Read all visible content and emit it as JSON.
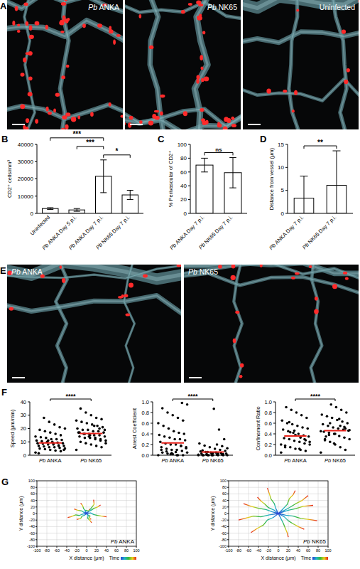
{
  "panel_labels": [
    "A",
    "B",
    "C",
    "D",
    "E",
    "F",
    "G"
  ],
  "images": {
    "A": [
      "Pb ANKA",
      "Pb NK65",
      "Uninfected"
    ],
    "E": [
      "Pb ANKA",
      "Pb NK65"
    ]
  },
  "chart_data": [
    {
      "type": "bar",
      "ylabel": "CD2⁺ cells/mm³",
      "categories": [
        "Uninfected",
        "Pb ANKA Day 5 p.i.",
        "Pb ANKA Day 7 p.i.",
        "Pb NK65 Day 7 p.i."
      ],
      "values": [
        2800,
        2000,
        21500,
        10700
      ],
      "errors": [
        500,
        800,
        9500,
        2700
      ],
      "color": "#ffffff",
      "ylim": [
        0,
        40000
      ],
      "yticks": [
        0,
        10000,
        20000,
        30000,
        40000
      ],
      "annotations": [
        {
          "from": 2,
          "to": 3,
          "text": "*"
        },
        {
          "from": 1,
          "to": 2,
          "text": "***"
        },
        {
          "from": 0,
          "to": 2,
          "text": "***"
        }
      ]
    },
    {
      "type": "bar",
      "ylabel": "% Perivascular of CD2⁺",
      "categories": [
        "Pb ANKA Day 7 p.i.",
        "Pb NK65 Day 7 p.i."
      ],
      "values": [
        70,
        59
      ],
      "errors": [
        10,
        22
      ],
      "color": "#ffffff",
      "ylim": [
        0,
        100
      ],
      "yticks": [
        0,
        20,
        40,
        60,
        80,
        100
      ],
      "annotations": [
        {
          "from": 0,
          "to": 1,
          "text": "ns"
        }
      ]
    },
    {
      "type": "bar",
      "ylabel": "Distance from vessel (μm)",
      "categories": [
        "Pb ANKA Day 7 p.i.",
        "Pb NK65 Day 7 p.i."
      ],
      "values": [
        3.3,
        6.1
      ],
      "errors": [
        4.8,
        7.5
      ],
      "color": "#ffffff",
      "ylim": [
        0,
        15
      ],
      "yticks": [
        0,
        5,
        10,
        15
      ],
      "annotations": [
        {
          "from": 0,
          "to": 1,
          "text": "**"
        }
      ]
    },
    {
      "type": "scatter",
      "ylabel": "Speed (μm/min)",
      "categories": [
        "Pb ANKA",
        "Pb NK65"
      ],
      "color": "#000000",
      "values": [
        [
          2,
          3,
          3.5,
          4,
          4.5,
          5,
          5,
          5.5,
          6,
          6,
          6.5,
          7,
          7,
          7.5,
          8,
          8,
          8.5,
          9,
          9,
          9.5,
          10,
          10,
          10.5,
          11,
          11.5,
          12,
          12,
          13,
          13.5,
          14,
          15,
          16,
          17,
          18,
          19,
          20,
          21,
          23,
          25,
          28,
          1.5,
          4,
          7,
          9,
          11
        ],
        [
          4,
          6,
          7,
          8,
          9,
          10,
          11,
          12,
          12,
          13,
          13,
          14,
          14,
          15,
          15,
          16,
          16,
          17,
          17,
          18,
          18,
          19,
          19,
          20,
          21,
          22,
          23,
          24,
          25,
          26,
          27,
          28,
          30,
          32,
          35,
          9,
          11,
          13,
          15,
          16,
          17,
          19,
          20,
          22,
          14
        ]
      ],
      "means": [
        9.2,
        16.3
      ],
      "ylim": [
        0,
        40
      ],
      "yticks": [
        0,
        10,
        20,
        30,
        40
      ],
      "annotations": [
        {
          "from": 0,
          "to": 1,
          "text": "****"
        }
      ]
    },
    {
      "type": "scatter",
      "ylabel": "Arrest Coefficient",
      "categories": [
        "Pb ANKA",
        "Pb NK65"
      ],
      "color": "#000000",
      "values": [
        [
          0,
          0,
          0,
          0.02,
          0.03,
          0.05,
          0.05,
          0.08,
          0.1,
          0.1,
          0.12,
          0.15,
          0.15,
          0.18,
          0.2,
          0.2,
          0.22,
          0.25,
          0.28,
          0.3,
          0.3,
          0.33,
          0.35,
          0.38,
          0.4,
          0.42,
          0.45,
          0.5,
          0.55,
          0.6,
          0.65,
          0.7,
          0.75,
          0.8,
          0.88,
          0.95,
          0.98,
          0,
          0.04,
          0.07,
          0.1,
          0.13,
          0.17,
          0.06,
          0.02
        ],
        [
          0,
          0,
          0,
          0,
          0,
          0,
          0,
          0.01,
          0.01,
          0.02,
          0.02,
          0.03,
          0.03,
          0.04,
          0.05,
          0.05,
          0.06,
          0.07,
          0.08,
          0.1,
          0.12,
          0.15,
          0.18,
          0.22,
          0.3,
          0.48,
          0.87,
          0,
          0,
          0.01,
          0.02,
          0.03,
          0.04,
          0.06,
          0.09,
          0.13,
          0.17,
          0.2,
          0,
          0.01
        ]
      ],
      "means": [
        0.23,
        0.06
      ],
      "ylim": [
        0,
        1
      ],
      "yticks": [
        {
          "value": 0,
          "label": "0.0"
        },
        0.2,
        0.4,
        0.6,
        0.8,
        {
          "value": 1,
          "label": "1.0"
        }
      ],
      "annotations": [
        {
          "from": 0,
          "to": 1,
          "text": "****"
        }
      ]
    },
    {
      "type": "scatter",
      "ylabel": "Confinement Ratio",
      "categories": [
        "Pb ANKA",
        "Pb NK65"
      ],
      "color": "#000000",
      "values": [
        [
          0.05,
          0.08,
          0.1,
          0.12,
          0.15,
          0.18,
          0.2,
          0.22,
          0.25,
          0.27,
          0.3,
          0.32,
          0.35,
          0.37,
          0.4,
          0.42,
          0.45,
          0.48,
          0.5,
          0.52,
          0.55,
          0.58,
          0.6,
          0.65,
          0.7,
          0.75,
          0.8,
          0.85,
          0.9,
          0.2,
          0.28,
          0.33,
          0.38,
          0.43,
          0.15,
          0.25,
          0.3,
          0.12,
          0.46,
          0.62
        ],
        [
          0.05,
          0.1,
          0.15,
          0.2,
          0.25,
          0.28,
          0.3,
          0.33,
          0.36,
          0.4,
          0.42,
          0.44,
          0.46,
          0.48,
          0.5,
          0.52,
          0.55,
          0.58,
          0.6,
          0.63,
          0.66,
          0.7,
          0.73,
          0.76,
          0.8,
          0.85,
          0.9,
          0.95,
          0.35,
          0.45,
          0.5,
          0.55,
          0.4,
          0.6,
          0.3,
          0.47,
          0.53,
          0.68,
          0.22,
          0.38
        ]
      ],
      "means": [
        0.36,
        0.46
      ],
      "ylim": [
        0,
        1
      ],
      "yticks": [
        {
          "value": 0,
          "label": "0.0"
        },
        0.2,
        0.4,
        0.6,
        0.8,
        {
          "value": 1,
          "label": "1.0"
        }
      ],
      "annotations": [
        {
          "from": 0,
          "to": 1,
          "text": "****"
        }
      ]
    },
    {
      "type": "line",
      "label": "Pb ANKA",
      "xlabel": "X distance (μm)",
      "ylabel": "Y distance (μm)",
      "xlim": [
        -100,
        100
      ],
      "ylim": [
        -100,
        100
      ],
      "xticks": [
        -100,
        -80,
        -60,
        -40,
        -20,
        0,
        20,
        40,
        60,
        80,
        100
      ],
      "yticks": [
        -100,
        -80,
        -60,
        -40,
        -20,
        0,
        20,
        40,
        60,
        80,
        100
      ],
      "grid": true,
      "annotations": [
        {
          "text": "Time"
        }
      ],
      "series": [
        {
          "x": [
            0,
            4,
            9,
            15,
            22,
            28
          ],
          "values": [
            0,
            6,
            10,
            16,
            20,
            26
          ]
        },
        {
          "x": [
            0,
            -5,
            -10,
            -18,
            -25
          ],
          "values": [
            0,
            3,
            8,
            10,
            14
          ]
        },
        {
          "x": [
            0,
            3,
            2,
            6,
            10
          ],
          "values": [
            0,
            -6,
            -14,
            -20,
            -28
          ]
        },
        {
          "x": [
            0,
            -4,
            -9,
            -12,
            -20
          ],
          "values": [
            0,
            -5,
            -8,
            -15,
            -18
          ]
        },
        {
          "x": [
            0,
            8,
            14,
            20,
            30,
            40
          ],
          "values": [
            0,
            2,
            -3,
            -5,
            -8,
            -10
          ]
        },
        {
          "x": [
            0,
            -2,
            -6,
            -8,
            -12
          ],
          "values": [
            0,
            7,
            15,
            24,
            32
          ]
        },
        {
          "x": [
            0,
            6,
            10,
            15,
            14
          ],
          "values": [
            0,
            10,
            18,
            28,
            42
          ]
        },
        {
          "x": [
            0,
            -8,
            -15,
            -22,
            -32,
            -38
          ],
          "values": [
            0,
            -2,
            -6,
            -4,
            -10,
            -12
          ]
        },
        {
          "x": [
            0,
            2,
            7,
            5,
            9
          ],
          "values": [
            0,
            -4,
            -8,
            -12,
            -18
          ]
        },
        {
          "x": [
            0,
            -3,
            -2,
            4,
            6
          ],
          "values": [
            0,
            4,
            10,
            8,
            14
          ]
        }
      ]
    },
    {
      "type": "line",
      "label": "Pb NK65",
      "xlabel": "X distance (μm)",
      "ylabel": "Y distance (μm)",
      "xlim": [
        -100,
        100
      ],
      "ylim": [
        -100,
        100
      ],
      "xticks": [
        -100,
        -80,
        -60,
        -40,
        -20,
        0,
        20,
        40,
        60,
        80,
        100
      ],
      "yticks": [
        -100,
        -80,
        -60,
        -40,
        -20,
        0,
        20,
        40,
        60,
        80,
        100
      ],
      "grid": true,
      "annotations": [
        {
          "text": "Time"
        }
      ],
      "series": [
        {
          "x": [
            0,
            10,
            22,
            35,
            48,
            60
          ],
          "values": [
            0,
            8,
            18,
            30,
            40,
            55
          ]
        },
        {
          "x": [
            0,
            -12,
            -25,
            -40,
            -55,
            -70
          ],
          "values": [
            0,
            5,
            12,
            16,
            22,
            30
          ]
        },
        {
          "x": [
            0,
            5,
            10,
            14,
            18,
            20
          ],
          "values": [
            0,
            -15,
            -30,
            -45,
            -60,
            -72
          ]
        },
        {
          "x": [
            0,
            -10,
            -22,
            -30,
            -42,
            -55
          ],
          "values": [
            0,
            -12,
            -20,
            -35,
            -45,
            -58
          ]
        },
        {
          "x": [
            0,
            15,
            30,
            45,
            62,
            78
          ],
          "values": [
            0,
            -5,
            -8,
            -15,
            -18,
            -22
          ]
        },
        {
          "x": [
            0,
            -5,
            -8,
            -15,
            -18,
            -22
          ],
          "values": [
            0,
            15,
            30,
            45,
            60,
            78
          ]
        },
        {
          "x": [
            0,
            8,
            18,
            22,
            30,
            34
          ],
          "values": [
            0,
            12,
            28,
            45,
            58,
            70
          ]
        },
        {
          "x": [
            0,
            -18,
            -35,
            -50,
            -65,
            -80
          ],
          "values": [
            0,
            -4,
            -10,
            -8,
            -14,
            -20
          ]
        },
        {
          "x": [
            0,
            12,
            20,
            28,
            40,
            52
          ],
          "values": [
            0,
            -10,
            -22,
            -30,
            -40,
            -48
          ]
        },
        {
          "x": [
            0,
            -8,
            -20,
            -28,
            -35,
            -42
          ],
          "values": [
            0,
            10,
            18,
            30,
            38,
            50
          ]
        },
        {
          "x": [
            0,
            20,
            35,
            50,
            70
          ],
          "values": [
            0,
            10,
            15,
            22,
            25
          ]
        }
      ]
    }
  ]
}
